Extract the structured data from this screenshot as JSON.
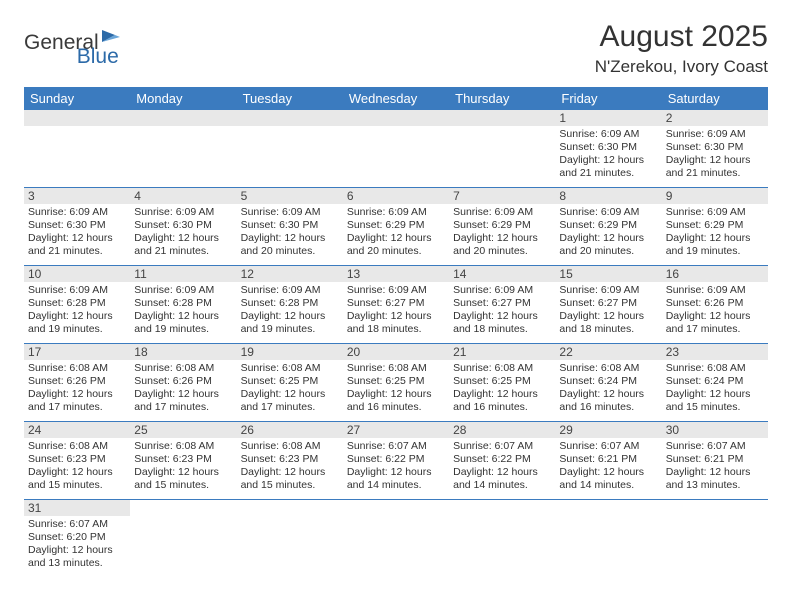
{
  "logo": {
    "text1": "General",
    "text2": "Blue"
  },
  "title": "August 2025",
  "location": "N'Zerekou, Ivory Coast",
  "colors": {
    "header_bg": "#3b7bbf",
    "header_fg": "#ffffff",
    "daynum_bg": "#e8e8e8",
    "cell_border": "#3b7bbf",
    "text": "#333333",
    "logo_blue": "#2c6aa8"
  },
  "weekdays": [
    "Sunday",
    "Monday",
    "Tuesday",
    "Wednesday",
    "Thursday",
    "Friday",
    "Saturday"
  ],
  "weeks": [
    [
      null,
      null,
      null,
      null,
      null,
      {
        "n": "1",
        "sr": "6:09 AM",
        "ss": "6:30 PM",
        "dl": "12 hours and 21 minutes."
      },
      {
        "n": "2",
        "sr": "6:09 AM",
        "ss": "6:30 PM",
        "dl": "12 hours and 21 minutes."
      }
    ],
    [
      {
        "n": "3",
        "sr": "6:09 AM",
        "ss": "6:30 PM",
        "dl": "12 hours and 21 minutes."
      },
      {
        "n": "4",
        "sr": "6:09 AM",
        "ss": "6:30 PM",
        "dl": "12 hours and 21 minutes."
      },
      {
        "n": "5",
        "sr": "6:09 AM",
        "ss": "6:30 PM",
        "dl": "12 hours and 20 minutes."
      },
      {
        "n": "6",
        "sr": "6:09 AM",
        "ss": "6:29 PM",
        "dl": "12 hours and 20 minutes."
      },
      {
        "n": "7",
        "sr": "6:09 AM",
        "ss": "6:29 PM",
        "dl": "12 hours and 20 minutes."
      },
      {
        "n": "8",
        "sr": "6:09 AM",
        "ss": "6:29 PM",
        "dl": "12 hours and 20 minutes."
      },
      {
        "n": "9",
        "sr": "6:09 AM",
        "ss": "6:29 PM",
        "dl": "12 hours and 19 minutes."
      }
    ],
    [
      {
        "n": "10",
        "sr": "6:09 AM",
        "ss": "6:28 PM",
        "dl": "12 hours and 19 minutes."
      },
      {
        "n": "11",
        "sr": "6:09 AM",
        "ss": "6:28 PM",
        "dl": "12 hours and 19 minutes."
      },
      {
        "n": "12",
        "sr": "6:09 AM",
        "ss": "6:28 PM",
        "dl": "12 hours and 19 minutes."
      },
      {
        "n": "13",
        "sr": "6:09 AM",
        "ss": "6:27 PM",
        "dl": "12 hours and 18 minutes."
      },
      {
        "n": "14",
        "sr": "6:09 AM",
        "ss": "6:27 PM",
        "dl": "12 hours and 18 minutes."
      },
      {
        "n": "15",
        "sr": "6:09 AM",
        "ss": "6:27 PM",
        "dl": "12 hours and 18 minutes."
      },
      {
        "n": "16",
        "sr": "6:09 AM",
        "ss": "6:26 PM",
        "dl": "12 hours and 17 minutes."
      }
    ],
    [
      {
        "n": "17",
        "sr": "6:08 AM",
        "ss": "6:26 PM",
        "dl": "12 hours and 17 minutes."
      },
      {
        "n": "18",
        "sr": "6:08 AM",
        "ss": "6:26 PM",
        "dl": "12 hours and 17 minutes."
      },
      {
        "n": "19",
        "sr": "6:08 AM",
        "ss": "6:25 PM",
        "dl": "12 hours and 17 minutes."
      },
      {
        "n": "20",
        "sr": "6:08 AM",
        "ss": "6:25 PM",
        "dl": "12 hours and 16 minutes."
      },
      {
        "n": "21",
        "sr": "6:08 AM",
        "ss": "6:25 PM",
        "dl": "12 hours and 16 minutes."
      },
      {
        "n": "22",
        "sr": "6:08 AM",
        "ss": "6:24 PM",
        "dl": "12 hours and 16 minutes."
      },
      {
        "n": "23",
        "sr": "6:08 AM",
        "ss": "6:24 PM",
        "dl": "12 hours and 15 minutes."
      }
    ],
    [
      {
        "n": "24",
        "sr": "6:08 AM",
        "ss": "6:23 PM",
        "dl": "12 hours and 15 minutes."
      },
      {
        "n": "25",
        "sr": "6:08 AM",
        "ss": "6:23 PM",
        "dl": "12 hours and 15 minutes."
      },
      {
        "n": "26",
        "sr": "6:08 AM",
        "ss": "6:23 PM",
        "dl": "12 hours and 15 minutes."
      },
      {
        "n": "27",
        "sr": "6:07 AM",
        "ss": "6:22 PM",
        "dl": "12 hours and 14 minutes."
      },
      {
        "n": "28",
        "sr": "6:07 AM",
        "ss": "6:22 PM",
        "dl": "12 hours and 14 minutes."
      },
      {
        "n": "29",
        "sr": "6:07 AM",
        "ss": "6:21 PM",
        "dl": "12 hours and 14 minutes."
      },
      {
        "n": "30",
        "sr": "6:07 AM",
        "ss": "6:21 PM",
        "dl": "12 hours and 13 minutes."
      }
    ],
    [
      {
        "n": "31",
        "sr": "6:07 AM",
        "ss": "6:20 PM",
        "dl": "12 hours and 13 minutes."
      },
      null,
      null,
      null,
      null,
      null,
      null
    ]
  ],
  "labels": {
    "sunrise": "Sunrise:",
    "sunset": "Sunset:",
    "daylight": "Daylight:"
  }
}
